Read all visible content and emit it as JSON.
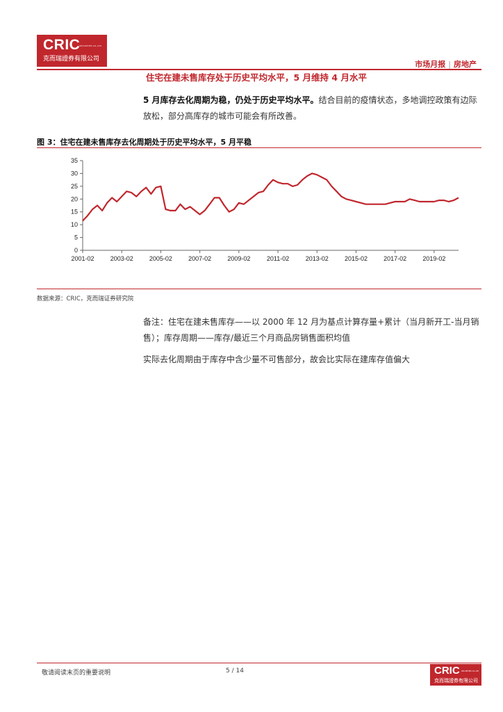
{
  "header": {
    "logo_text": "CRIC",
    "logo_en": "SECURITIES CO.,LTD",
    "logo_cn": "克而瑞證券有限公司",
    "report_type": "市场月报",
    "sector": "房地产"
  },
  "section_title": "住宅在建未售库存处于历史平均水平，5 月维持 4 月水平",
  "intro": {
    "bold": "5 月库存去化周期为稳，仍处于历史平均水平。",
    "text": "结合目前的疫情状态，多地调控政策有边际放松，部分高库存的城市可能会有所改善。"
  },
  "figure_title": "图 3：住宅在建未售库存去化周期处于历史平均水平，5 月平稳",
  "source": "数据来源：CRIC，克而瑞证券研究院",
  "notes": [
    "备注：住宅在建未售库存——以 2000 年 12 月为基点计算存量+累计（当月新开工-当月销售）；库存周期——库存/最近三个月商品房销售面积均值",
    "实际去化周期由于库存中含少量不可售部分，故会比实际在建库存值偏大"
  ],
  "footer": {
    "disclaimer": "敬请阅读末页的重要说明",
    "page": "5 / 14",
    "logo_text": "CRIC",
    "logo_en": "SECURITIES CO.,LTD",
    "logo_cn": "克而瑞證券有限公司"
  },
  "colors": {
    "accent": "#c0272d",
    "line": "#c0272d"
  },
  "chart_data": {
    "type": "line",
    "title": "",
    "xlabel": "",
    "ylabel": "",
    "ylim": [
      0,
      35
    ],
    "yticks": [
      0,
      5,
      10,
      15,
      20,
      25,
      30,
      35
    ],
    "xticks": [
      "2001-02",
      "2003-02",
      "2005-02",
      "2007-02",
      "2009-02",
      "2011-02",
      "2013-02",
      "2015-02",
      "2017-02",
      "2019-02"
    ],
    "grid": false,
    "legend": "none",
    "x": [
      "2001-02",
      "2001-05",
      "2001-08",
      "2001-11",
      "2002-02",
      "2002-05",
      "2002-08",
      "2002-11",
      "2003-02",
      "2003-05",
      "2003-08",
      "2003-11",
      "2004-02",
      "2004-05",
      "2004-08",
      "2004-11",
      "2005-02",
      "2005-05",
      "2005-08",
      "2005-11",
      "2006-02",
      "2006-05",
      "2006-08",
      "2006-11",
      "2007-02",
      "2007-05",
      "2007-08",
      "2007-11",
      "2008-02",
      "2008-05",
      "2008-08",
      "2008-11",
      "2009-02",
      "2009-05",
      "2009-08",
      "2009-11",
      "2010-02",
      "2010-05",
      "2010-08",
      "2010-11",
      "2011-02",
      "2011-05",
      "2011-08",
      "2011-11",
      "2012-02",
      "2012-05",
      "2012-08",
      "2012-11",
      "2013-02",
      "2013-05",
      "2013-08",
      "2013-11",
      "2014-02",
      "2014-05",
      "2014-08",
      "2014-11",
      "2015-02",
      "2015-05",
      "2015-08",
      "2015-11",
      "2016-02",
      "2016-05",
      "2016-08",
      "2016-11",
      "2017-02",
      "2017-05",
      "2017-08",
      "2017-11",
      "2018-02",
      "2018-05",
      "2018-08",
      "2018-11",
      "2019-02",
      "2019-05",
      "2019-08",
      "2019-11",
      "2020-02",
      "2020-05"
    ],
    "series": [
      {
        "values": [
          11.5,
          13.5,
          16.0,
          17.5,
          15.5,
          18.5,
          20.5,
          19.0,
          21.0,
          23.0,
          22.5,
          21.0,
          23.0,
          24.5,
          22.0,
          24.5,
          25.0,
          16.0,
          15.5,
          15.5,
          18.0,
          16.0,
          17.0,
          15.5,
          14.0,
          15.5,
          18.0,
          20.5,
          20.5,
          17.5,
          15.0,
          16.0,
          18.5,
          18.0,
          19.5,
          21.0,
          22.5,
          23.0,
          25.5,
          27.5,
          26.5,
          26.0,
          26.0,
          25.0,
          25.5,
          27.5,
          29.0,
          30.0,
          29.5,
          28.5,
          27.5,
          25.0,
          23.0,
          21.0,
          20.0,
          19.5,
          19.0,
          18.5,
          18.0,
          18.0,
          18.0,
          18.0,
          18.0,
          18.5,
          19.0,
          19.0,
          19.0,
          20.0,
          19.5,
          19.0,
          19.0,
          19.0,
          19.0,
          19.5,
          19.5,
          19.0,
          19.5,
          20.5
        ]
      }
    ]
  }
}
